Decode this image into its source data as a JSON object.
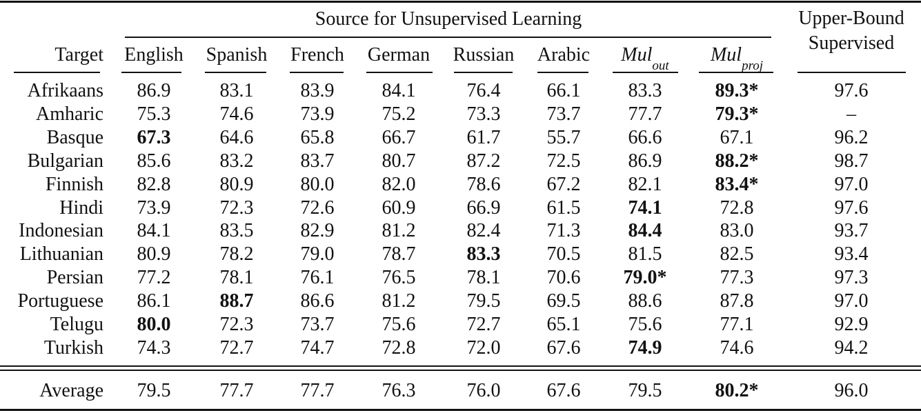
{
  "header": {
    "group_title": "Source for Unsupervised Learning",
    "target_label": "Target",
    "sources": [
      {
        "label": "English"
      },
      {
        "label": "Spanish"
      },
      {
        "label": "French"
      },
      {
        "label": "German"
      },
      {
        "label": "Russian"
      },
      {
        "label": "Arabic"
      },
      {
        "label": "Mul",
        "sub": "out"
      },
      {
        "label": "Mul",
        "sub": "proj"
      }
    ],
    "upper_line1": "Upper-Bound",
    "upper_line2": "Supervised"
  },
  "rows": [
    {
      "target": "Afrikaans",
      "values": [
        "86.9",
        "83.1",
        "83.9",
        "84.1",
        "76.4",
        "66.1",
        "83.3",
        "89.3*"
      ],
      "bold": [
        7
      ],
      "upper": "97.6"
    },
    {
      "target": "Amharic",
      "values": [
        "75.3",
        "74.6",
        "73.9",
        "75.2",
        "73.3",
        "73.7",
        "77.7",
        "79.3*"
      ],
      "bold": [
        7
      ],
      "upper": "–"
    },
    {
      "target": "Basque",
      "values": [
        "67.3",
        "64.6",
        "65.8",
        "66.7",
        "61.7",
        "55.7",
        "66.6",
        "67.1"
      ],
      "bold": [
        0
      ],
      "upper": "96.2"
    },
    {
      "target": "Bulgarian",
      "values": [
        "85.6",
        "83.2",
        "83.7",
        "80.7",
        "87.2",
        "72.5",
        "86.9",
        "88.2*"
      ],
      "bold": [
        7
      ],
      "upper": "98.7"
    },
    {
      "target": "Finnish",
      "values": [
        "82.8",
        "80.9",
        "80.0",
        "82.0",
        "78.6",
        "67.2",
        "82.1",
        "83.4*"
      ],
      "bold": [
        7
      ],
      "upper": "97.0"
    },
    {
      "target": "Hindi",
      "values": [
        "73.9",
        "72.3",
        "72.6",
        "60.9",
        "66.9",
        "61.5",
        "74.1",
        "72.8"
      ],
      "bold": [
        6
      ],
      "upper": "97.6"
    },
    {
      "target": "Indonesian",
      "values": [
        "84.1",
        "83.5",
        "82.9",
        "81.2",
        "82.4",
        "71.3",
        "84.4",
        "83.0"
      ],
      "bold": [
        6
      ],
      "upper": "93.7"
    },
    {
      "target": "Lithuanian",
      "values": [
        "80.9",
        "78.2",
        "79.0",
        "78.7",
        "83.3",
        "70.5",
        "81.5",
        "82.5"
      ],
      "bold": [
        4
      ],
      "upper": "93.4"
    },
    {
      "target": "Persian",
      "values": [
        "77.2",
        "78.1",
        "76.1",
        "76.5",
        "78.1",
        "70.6",
        "79.0*",
        "77.3"
      ],
      "bold": [
        6
      ],
      "upper": "97.3"
    },
    {
      "target": "Portuguese",
      "values": [
        "86.1",
        "88.7",
        "86.6",
        "81.2",
        "79.5",
        "69.5",
        "88.6",
        "87.8"
      ],
      "bold": [
        1
      ],
      "upper": "97.0"
    },
    {
      "target": "Telugu",
      "values": [
        "80.0",
        "72.3",
        "73.7",
        "75.6",
        "72.7",
        "65.1",
        "75.6",
        "77.1"
      ],
      "bold": [
        0
      ],
      "upper": "92.9"
    },
    {
      "target": "Turkish",
      "values": [
        "74.3",
        "72.7",
        "74.7",
        "72.8",
        "72.0",
        "67.6",
        "74.9",
        "74.6"
      ],
      "bold": [
        6
      ],
      "upper": "94.2"
    }
  ],
  "average": {
    "target": "Average",
    "values": [
      "79.5",
      "77.7",
      "77.7",
      "76.3",
      "76.0",
      "67.6",
      "79.5",
      "80.2*"
    ],
    "bold": [
      7
    ],
    "upper": "96.0"
  }
}
